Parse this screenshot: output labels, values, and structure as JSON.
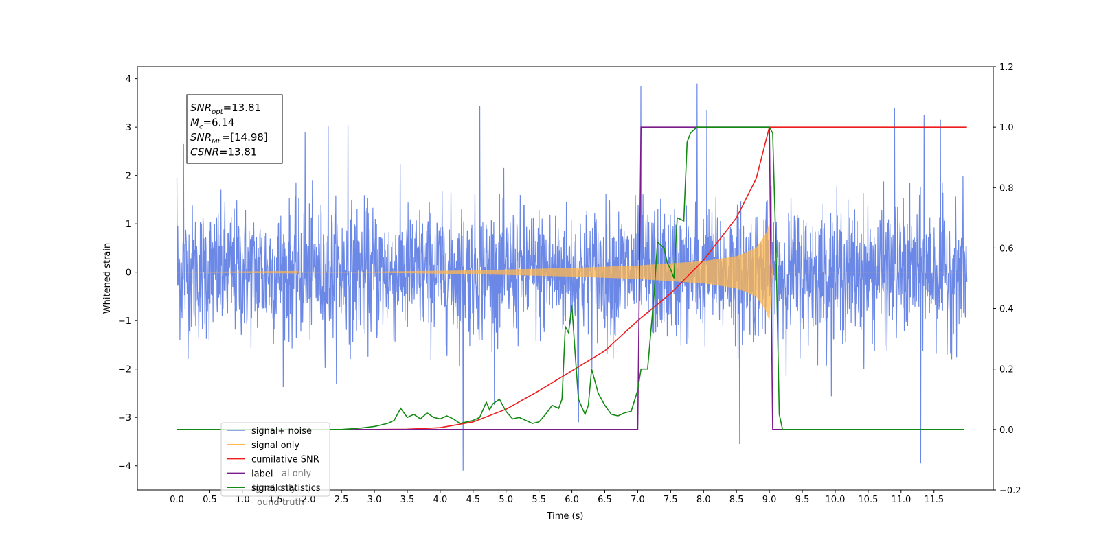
{
  "chart_data": {
    "type": "line",
    "xlabel": "Time (s)",
    "ylabel": "Whitened strain",
    "ylabel_right": "",
    "xlim": [
      -0.6,
      12.4
    ],
    "ylim": [
      -4.5,
      4.25
    ],
    "ylim_right": [
      -0.2,
      1.2
    ],
    "x_ticks": [
      0.0,
      0.5,
      1.0,
      1.5,
      2.0,
      2.5,
      3.0,
      3.5,
      4.0,
      4.5,
      5.0,
      5.5,
      6.0,
      6.5,
      7.0,
      7.5,
      8.0,
      8.5,
      9.0,
      9.5,
      10.0,
      10.5,
      11.0,
      11.5
    ],
    "x_tick_labels": [
      "0.0",
      "0.5",
      "1.0",
      "1.5",
      "2.0",
      "2.5",
      "3.0",
      "3.5",
      "4.0",
      "4.5",
      "5.0",
      "5.5",
      "6.0",
      "6.5",
      "7.0",
      "7.5",
      "8.0",
      "8.5",
      "9.0",
      "9.5",
      "10.0",
      "10.5",
      "11.0",
      "11.5"
    ],
    "y_ticks": [
      -4,
      -3,
      -2,
      -1,
      0,
      1,
      2,
      3,
      4
    ],
    "y_tick_labels": [
      "−4",
      "−3",
      "−2",
      "−1",
      "0",
      "1",
      "2",
      "3",
      "4"
    ],
    "y_right_ticks": [
      -0.2,
      0.0,
      0.2,
      0.4,
      0.6,
      0.8,
      1.0,
      1.2
    ],
    "y_right_tick_labels": [
      "−0.2",
      "0.0",
      "0.2",
      "0.4",
      "0.6",
      "0.8",
      "1.0",
      "1.2"
    ],
    "grid": false,
    "legend_position": "lower-left",
    "series": [
      {
        "name": "signal+ noise",
        "color": "#6b88e6",
        "axis": "left",
        "x_range": [
          0.0,
          12.0
        ],
        "typical_amplitude": 1.5,
        "notable_points": [
          [
            0.0,
            1.95
          ],
          [
            0.1,
            2.65
          ],
          [
            1.95,
            2.9
          ],
          [
            2.3,
            3.02
          ],
          [
            2.6,
            3.05
          ],
          [
            4.35,
            -4.1
          ],
          [
            4.6,
            3.44
          ],
          [
            6.1,
            -3.1
          ],
          [
            7.05,
            3.85
          ],
          [
            7.9,
            3.9
          ],
          [
            8.55,
            -3.55
          ],
          [
            8.05,
            3.35
          ],
          [
            10.9,
            3.4
          ],
          [
            11.3,
            -3.95
          ],
          [
            11.35,
            3.25
          ],
          [
            11.6,
            3.15
          ]
        ]
      },
      {
        "name": "signal only",
        "color": "#ffb74d",
        "axis": "left",
        "envelope": [
          [
            0.0,
            0.0
          ],
          [
            3.0,
            0.01
          ],
          [
            4.5,
            0.04
          ],
          [
            6.0,
            0.09
          ],
          [
            7.0,
            0.14
          ],
          [
            8.0,
            0.23
          ],
          [
            8.5,
            0.33
          ],
          [
            8.8,
            0.5
          ],
          [
            8.95,
            0.8
          ],
          [
            9.0,
            1.0
          ],
          [
            9.05,
            0.0
          ],
          [
            12.0,
            0.0
          ]
        ]
      },
      {
        "name": "cumilative SNR",
        "color": "#ee1c1c",
        "axis": "right",
        "points": [
          [
            0.0,
            0.0
          ],
          [
            2.5,
            0.0
          ],
          [
            3.0,
            0.0
          ],
          [
            3.5,
            0.001
          ],
          [
            4.0,
            0.006
          ],
          [
            4.5,
            0.025
          ],
          [
            5.0,
            0.067
          ],
          [
            5.5,
            0.128
          ],
          [
            6.0,
            0.194
          ],
          [
            6.5,
            0.26
          ],
          [
            7.0,
            0.36
          ],
          [
            7.5,
            0.45
          ],
          [
            8.0,
            0.56
          ],
          [
            8.5,
            0.7
          ],
          [
            8.8,
            0.83
          ],
          [
            9.0,
            1.0
          ],
          [
            12.0,
            1.0
          ]
        ]
      },
      {
        "name": "label",
        "color": "#7b1a8c",
        "axis": "right",
        "points": [
          [
            0.0,
            0.0
          ],
          [
            7.0,
            0.0
          ],
          [
            7.05,
            1.0
          ],
          [
            9.0,
            1.0
          ],
          [
            9.05,
            0.0
          ],
          [
            11.95,
            0.0
          ]
        ]
      },
      {
        "name": "signal statistics",
        "color": "#138a13",
        "axis": "right",
        "points": [
          [
            0.0,
            0.0
          ],
          [
            2.5,
            0.0
          ],
          [
            2.8,
            0.005
          ],
          [
            3.0,
            0.01
          ],
          [
            3.1,
            0.015
          ],
          [
            3.2,
            0.02
          ],
          [
            3.3,
            0.03
          ],
          [
            3.4,
            0.07
          ],
          [
            3.5,
            0.04
          ],
          [
            3.6,
            0.05
          ],
          [
            3.7,
            0.035
          ],
          [
            3.8,
            0.055
          ],
          [
            3.9,
            0.04
          ],
          [
            4.0,
            0.035
          ],
          [
            4.1,
            0.045
          ],
          [
            4.2,
            0.035
          ],
          [
            4.3,
            0.02
          ],
          [
            4.4,
            0.025
          ],
          [
            4.5,
            0.03
          ],
          [
            4.6,
            0.04
          ],
          [
            4.7,
            0.09
          ],
          [
            4.75,
            0.065
          ],
          [
            4.8,
            0.085
          ],
          [
            4.9,
            0.1
          ],
          [
            5.0,
            0.06
          ],
          [
            5.1,
            0.035
          ],
          [
            5.2,
            0.04
          ],
          [
            5.3,
            0.03
          ],
          [
            5.4,
            0.02
          ],
          [
            5.5,
            0.025
          ],
          [
            5.6,
            0.05
          ],
          [
            5.7,
            0.08
          ],
          [
            5.8,
            0.07
          ],
          [
            5.85,
            0.1
          ],
          [
            5.9,
            0.34
          ],
          [
            5.95,
            0.32
          ],
          [
            6.0,
            0.41
          ],
          [
            6.05,
            0.25
          ],
          [
            6.1,
            0.1
          ],
          [
            6.2,
            0.05
          ],
          [
            6.25,
            0.08
          ],
          [
            6.3,
            0.2
          ],
          [
            6.4,
            0.12
          ],
          [
            6.5,
            0.08
          ],
          [
            6.6,
            0.05
          ],
          [
            6.7,
            0.045
          ],
          [
            6.8,
            0.055
          ],
          [
            6.9,
            0.06
          ],
          [
            7.0,
            0.13
          ],
          [
            7.05,
            0.2
          ],
          [
            7.15,
            0.2
          ],
          [
            7.25,
            0.45
          ],
          [
            7.3,
            0.62
          ],
          [
            7.4,
            0.6
          ],
          [
            7.45,
            0.55
          ],
          [
            7.5,
            0.53
          ],
          [
            7.55,
            0.5
          ],
          [
            7.6,
            0.7
          ],
          [
            7.7,
            0.69
          ],
          [
            7.75,
            0.95
          ],
          [
            7.8,
            0.98
          ],
          [
            7.9,
            1.0
          ],
          [
            9.0,
            1.0
          ],
          [
            9.05,
            0.98
          ],
          [
            9.1,
            0.6
          ],
          [
            9.15,
            0.05
          ],
          [
            9.2,
            0.0
          ],
          [
            11.95,
            0.0
          ]
        ]
      }
    ],
    "annotations": [
      {
        "name": "SNR",
        "sub": "opt",
        "value": "=13.81"
      },
      {
        "name": "M",
        "sub": "c",
        "value": "=6.14"
      },
      {
        "name": "SNR",
        "sub": "MF",
        "value": "=[14.98]"
      },
      {
        "name": "CSNR",
        "sub": "",
        "value": "=13.81"
      }
    ],
    "legend": [
      "signal+ noise",
      "signal only",
      "cumilative SNR",
      "label",
      "signal statistics"
    ],
    "legend_hidden_fragments": [
      "al only",
      "ignal only",
      "ound truth"
    ]
  }
}
